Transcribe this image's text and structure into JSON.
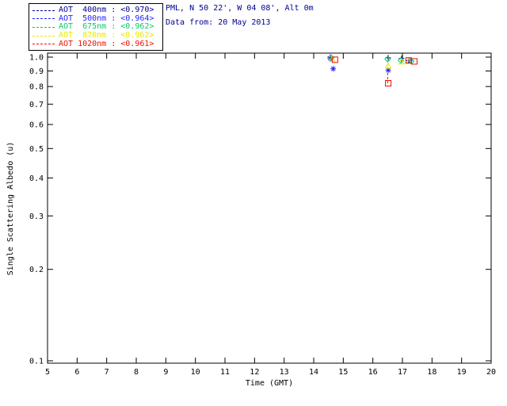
{
  "header": {
    "line1": "PML, N 50 22', W 04 08', Alt 0m",
    "line2": "Data from: 20 May 2013"
  },
  "legend": {
    "items": [
      {
        "label": "AOT  400nm : <0.970>"
      },
      {
        "label": "AOT  500nm : <0.964>"
      },
      {
        "label": "AOT  675nm : <0.962>"
      },
      {
        "label": "AOT  870nm : <0.962>"
      },
      {
        "label": "AOT 1020nm : <0.961>"
      }
    ]
  },
  "chart_data": {
    "type": "scatter",
    "title": "",
    "xlabel": "Time (GMT)",
    "ylabel": "Single Scattering Albedo (u)",
    "xlim": [
      5,
      20
    ],
    "ylim": [
      0.1,
      1.0
    ],
    "yscale": "log",
    "grid": false,
    "legend_position": "top-left",
    "xticks": [
      5,
      6,
      7,
      8,
      9,
      10,
      11,
      12,
      13,
      14,
      15,
      16,
      17,
      18,
      19,
      20
    ],
    "yticks": [
      1.0,
      0.9,
      0.8,
      0.7,
      0.6,
      0.5,
      0.4,
      0.3,
      0.2,
      0.1
    ],
    "series": [
      {
        "name": "AOT 400nm",
        "mean_ssa": "<0.970>",
        "color": "#000090",
        "marker": "plus",
        "points": [
          [
            14.56,
            1.0
          ],
          [
            16.52,
            0.995
          ],
          [
            16.97,
            0.99
          ],
          [
            17.21,
            0.975
          ]
        ]
      },
      {
        "name": "AOT 500nm",
        "mean_ssa": "<0.964>",
        "color": "#2424ff",
        "marker": "asterisk",
        "points": [
          [
            14.56,
            0.99
          ],
          [
            14.66,
            0.915
          ],
          [
            16.52,
            0.905
          ],
          [
            17.25,
            0.972
          ]
        ]
      },
      {
        "name": "AOT 675nm",
        "mean_ssa": "<0.962>",
        "color": "#00cc66",
        "marker": "diamond",
        "points": [
          [
            14.6,
            0.995
          ],
          [
            16.5,
            0.985
          ],
          [
            16.95,
            0.975
          ],
          [
            17.3,
            0.97
          ]
        ]
      },
      {
        "name": "AOT 870nm",
        "mean_ssa": "<0.962>",
        "color": "#e8e800",
        "marker": "triangle",
        "points": [
          [
            14.62,
            0.985
          ],
          [
            16.52,
            0.935
          ],
          [
            16.97,
            0.965
          ],
          [
            17.22,
            0.97
          ]
        ]
      },
      {
        "name": "AOT 1020nm",
        "mean_ssa": "<0.961>",
        "color": "#ee1100",
        "marker": "square",
        "points": [
          [
            14.72,
            0.98
          ],
          [
            16.52,
            0.82
          ],
          [
            17.21,
            0.975
          ],
          [
            17.4,
            0.968
          ]
        ]
      }
    ],
    "stems": [
      {
        "t": 14.58,
        "v1": 0.965,
        "v2": 1.0,
        "color": "#00cc66"
      },
      {
        "t": 16.5,
        "v1": 0.93,
        "v2": 1.0,
        "color": "#e8e800"
      },
      {
        "t": 16.5,
        "v1": 0.82,
        "v2": 0.9,
        "color": "#ee1100"
      },
      {
        "t": 16.96,
        "v1": 0.963,
        "v2": 0.99,
        "color": "#00cc66"
      }
    ]
  }
}
